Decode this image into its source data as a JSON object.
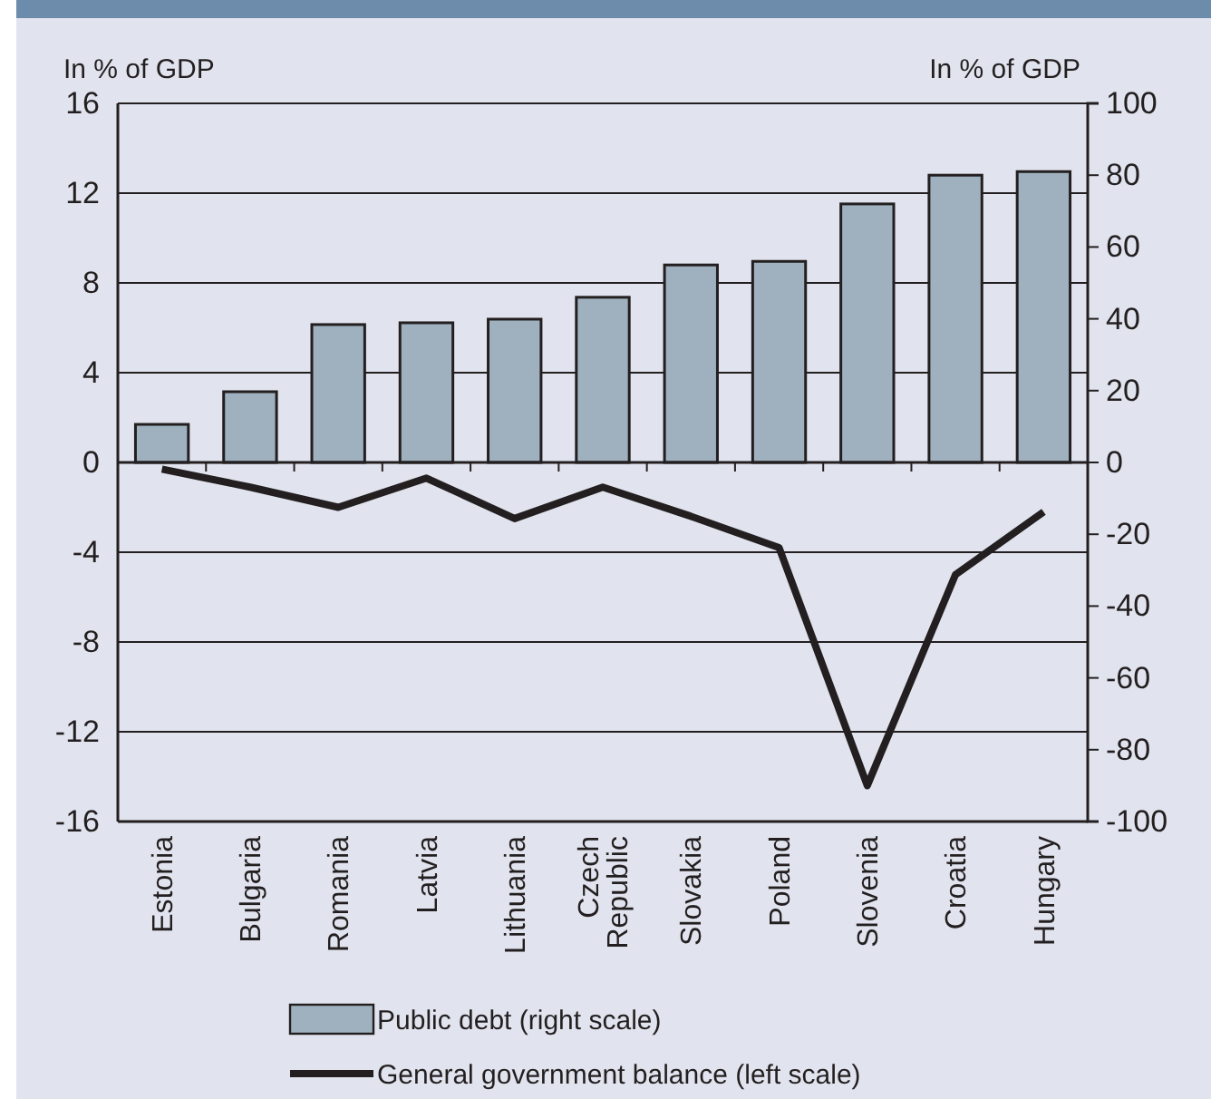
{
  "chart_data": {
    "type": "bar",
    "categories": [
      "Estonia",
      "Bulgaria",
      "Romania",
      "Latvia",
      "Lithuania",
      "Czech Republic",
      "Slovakia",
      "Poland",
      "Slovenia",
      "Croatia",
      "Hungary"
    ],
    "ylabel": "In % of GDP",
    "y2label": "In % of GDP",
    "ylim": [
      -16,
      16
    ],
    "yticks": [
      -16,
      -12,
      -8,
      -4,
      0,
      4,
      8,
      12,
      16
    ],
    "y2lim": [
      -100,
      100
    ],
    "y2ticks": [
      -100,
      -80,
      -60,
      -40,
      -20,
      0,
      20,
      40,
      60,
      80,
      100
    ],
    "grid": "y",
    "legend": "bottom",
    "series": [
      {
        "name": "Public debt (right scale)",
        "axis": "y2",
        "color": "#9fb1bf",
        "values": [
          10.6,
          19.7,
          38.4,
          38.9,
          39.9,
          46,
          55,
          56,
          72,
          80,
          81
        ]
      },
      {
        "name": "General government balance (left scale)",
        "type": "line",
        "color": "#231f20",
        "values": [
          -0.3,
          -1.1,
          -2.0,
          -0.7,
          -2.5,
          -1.1,
          -2.4,
          -3.8,
          -14.4,
          -5.0,
          -2.2
        ]
      }
    ]
  }
}
